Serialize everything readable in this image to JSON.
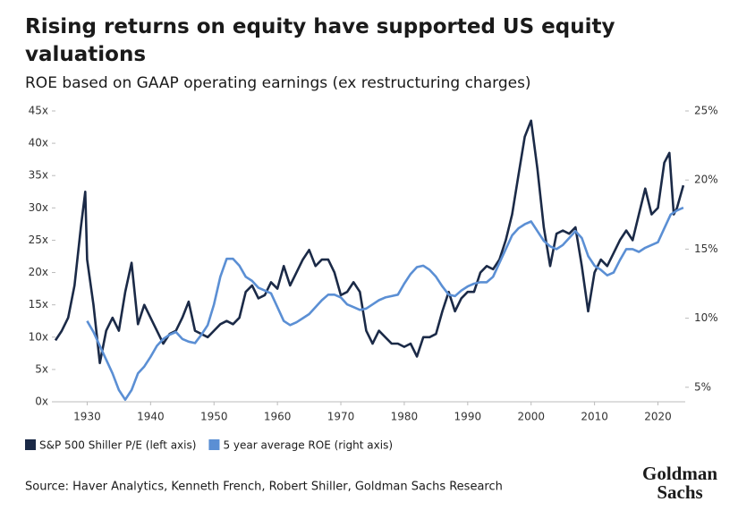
{
  "chart_data": {
    "type": "line",
    "title": "Rising returns on equity have supported US equity valuations",
    "subtitle": "ROE based on GAAP operating earnings (ex restructuring charges)",
    "source": "Source: Haver Analytics, Kenneth French, Robert Shiller, Goldman Sachs Research",
    "logo": [
      "Goldman",
      "Sachs"
    ],
    "xlim": [
      1925,
      2024.3
    ],
    "xticks": [
      1930,
      1940,
      1950,
      1960,
      1970,
      1980,
      1990,
      2000,
      2010,
      2020
    ],
    "ylim": [
      0,
      45
    ],
    "yticks": [
      {
        "value": 0,
        "label": "0x"
      },
      {
        "value": 5,
        "label": "5x"
      },
      {
        "value": 10,
        "label": "10x"
      },
      {
        "value": 15,
        "label": "15x"
      },
      {
        "value": 20,
        "label": "20x"
      },
      {
        "value": 25,
        "label": "25x"
      },
      {
        "value": 30,
        "label": "30x"
      },
      {
        "value": 35,
        "label": "35x"
      },
      {
        "value": 40,
        "label": "40x"
      },
      {
        "value": 45,
        "label": "45x"
      }
    ],
    "y2lim": [
      3.95,
      25
    ],
    "y2ticks": [
      {
        "value": 5,
        "label": "5%"
      },
      {
        "value": 10,
        "label": "10%"
      },
      {
        "value": 15,
        "label": "15%"
      },
      {
        "value": 20,
        "label": "20%"
      },
      {
        "value": 25,
        "label": "25%"
      }
    ],
    "grid": false,
    "legend": "bottom-left",
    "series": [
      {
        "name": "S&P 500 Shiller P/E (left axis)",
        "color": "#1b2a47",
        "x": [
          1925,
          1926,
          1927,
          1928,
          1929,
          1929.7,
          1930,
          1931,
          1932,
          1933,
          1934,
          1935,
          1936,
          1937,
          1938,
          1939,
          1940,
          1941,
          1942,
          1943,
          1944,
          1945,
          1946,
          1947,
          1948,
          1949,
          1950,
          1951,
          1952,
          1953,
          1954,
          1955,
          1956,
          1957,
          1958,
          1959,
          1960,
          1961,
          1962,
          1963,
          1964,
          1965,
          1966,
          1967,
          1968,
          1969,
          1970,
          1971,
          1972,
          1973,
          1974,
          1975,
          1976,
          1977,
          1978,
          1979,
          1980,
          1981,
          1982,
          1983,
          1984,
          1985,
          1986,
          1987,
          1988,
          1989,
          1990,
          1991,
          1992,
          1993,
          1994,
          1995,
          1996,
          1997,
          1998,
          1999,
          2000,
          2001,
          2002,
          2003,
          2004,
          2005,
          2006,
          2007,
          2008,
          2009,
          2010,
          2011,
          2012,
          2013,
          2014,
          2015,
          2016,
          2017,
          2018,
          2019,
          2020,
          2021,
          2021.8,
          2022.5,
          2023,
          2024
        ],
        "values": [
          9.5,
          11,
          13,
          18,
          27,
          32.5,
          22,
          15,
          6,
          11,
          13,
          11,
          17,
          21.5,
          12,
          15,
          13,
          11,
          9,
          10.5,
          11,
          13,
          15.5,
          11,
          10.5,
          10,
          11,
          12,
          12.5,
          12,
          13,
          17,
          18,
          16,
          16.5,
          18.5,
          17.5,
          21,
          18,
          20,
          22,
          23.5,
          21,
          22,
          22,
          20,
          16.5,
          17,
          18.5,
          17,
          11,
          9,
          11,
          10,
          9,
          9,
          8.5,
          9,
          7,
          10,
          10,
          10.5,
          14,
          17,
          14,
          16,
          17,
          17,
          20,
          21,
          20.5,
          22,
          25,
          29,
          35,
          41,
          43.5,
          36,
          27,
          21,
          26,
          26.5,
          26,
          27,
          21,
          14,
          20,
          22,
          21,
          23,
          25,
          26.5,
          25,
          29,
          33,
          29,
          30,
          37,
          38.5,
          29,
          30,
          33.5
        ]
      },
      {
        "name": "5 year average ROE (right axis)",
        "color": "#5b8fd4",
        "axis": "y2",
        "x": [
          1930,
          1931,
          1932,
          1933,
          1934,
          1935,
          1936,
          1937,
          1938,
          1939,
          1940,
          1941,
          1942,
          1943,
          1944,
          1945,
          1946,
          1947,
          1948,
          1949,
          1950,
          1951,
          1952,
          1953,
          1954,
          1955,
          1956,
          1957,
          1958,
          1959,
          1960,
          1961,
          1962,
          1963,
          1964,
          1965,
          1966,
          1967,
          1968,
          1969,
          1970,
          1971,
          1972,
          1973,
          1974,
          1975,
          1976,
          1977,
          1978,
          1979,
          1980,
          1981,
          1982,
          1983,
          1984,
          1985,
          1986,
          1987,
          1988,
          1989,
          1990,
          1991,
          1992,
          1993,
          1994,
          1995,
          1996,
          1997,
          1998,
          1999,
          2000,
          2001,
          2002,
          2003,
          2004,
          2005,
          2006,
          2007,
          2008,
          2009,
          2010,
          2011,
          2012,
          2013,
          2014,
          2015,
          2016,
          2017,
          2018,
          2019,
          2020,
          2021,
          2022,
          2023,
          2024
        ],
        "values": [
          9.8,
          9,
          8,
          7,
          6,
          4.8,
          4.1,
          4.8,
          6,
          6.5,
          7.2,
          8,
          8.5,
          8.8,
          9,
          8.5,
          8.3,
          8.2,
          8.8,
          9.5,
          11,
          13,
          14.3,
          14.3,
          13.8,
          13,
          12.7,
          12.2,
          12,
          11.8,
          10.8,
          9.8,
          9.5,
          9.7,
          10,
          10.3,
          10.8,
          11.3,
          11.7,
          11.7,
          11.5,
          11,
          10.8,
          10.6,
          10.7,
          11,
          11.3,
          11.5,
          11.6,
          11.7,
          12.5,
          13.2,
          13.7,
          13.8,
          13.5,
          13,
          12.3,
          11.7,
          11.6,
          12,
          12.3,
          12.5,
          12.6,
          12.6,
          13,
          14,
          15,
          16,
          16.5,
          16.8,
          17,
          16.3,
          15.6,
          15.2,
          15,
          15.3,
          15.8,
          16.3,
          15.8,
          14.5,
          13.8,
          13.5,
          13.1,
          13.3,
          14.2,
          15,
          15,
          14.8,
          15.1,
          15.3,
          15.5,
          16.5,
          17.5,
          17.8,
          18
        ]
      }
    ]
  }
}
